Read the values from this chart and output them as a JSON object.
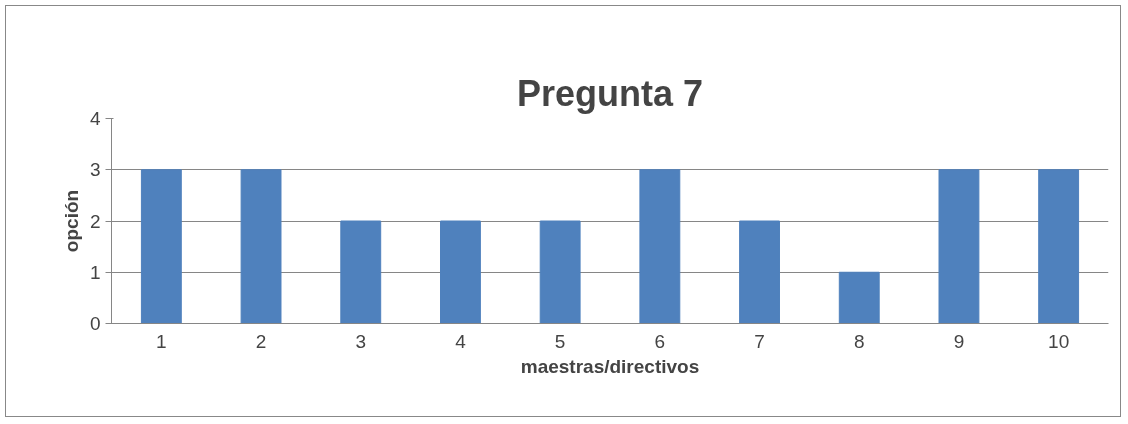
{
  "chart_data": {
    "type": "bar",
    "title": "Pregunta 7",
    "xlabel": "maestras/directivos",
    "ylabel": "opción",
    "categories": [
      "1",
      "2",
      "3",
      "4",
      "5",
      "6",
      "7",
      "8",
      "9",
      "10"
    ],
    "values": [
      3,
      3,
      2,
      2,
      2,
      3,
      2,
      1,
      3,
      3
    ],
    "color": "#4f81bd",
    "ylim": [
      0,
      4
    ],
    "yticks": [
      0,
      1,
      2,
      3,
      4
    ],
    "grid": "y"
  }
}
